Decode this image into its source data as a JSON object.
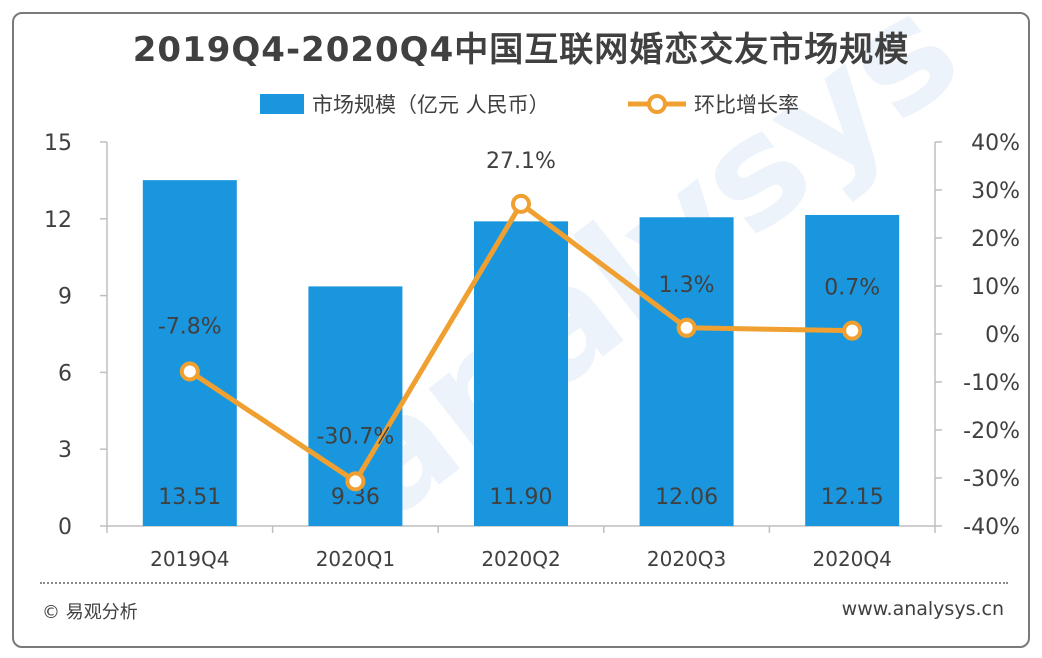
{
  "title": "2019Q4-2020Q4中国互联网婚恋交友市场规模",
  "footer": {
    "left": "© 易观分析",
    "right": "www.analysys.cn"
  },
  "watermark": "analysys",
  "colors": {
    "bar": "#1a96de",
    "line": "#f0a030",
    "marker_fill": "#ffffff",
    "axis": "#404040"
  },
  "chart_data": {
    "type": "bar",
    "categories": [
      "2019Q4",
      "2020Q1",
      "2020Q2",
      "2020Q3",
      "2020Q4"
    ],
    "series": [
      {
        "name": "市场规模（亿元 人民币）",
        "type": "bar",
        "axis": "left",
        "values": [
          13.51,
          9.36,
          11.9,
          12.06,
          12.15
        ],
        "labels": [
          "13.51",
          "9.36",
          "11.90",
          "12.06",
          "12.15"
        ]
      },
      {
        "name": "环比增长率",
        "type": "line",
        "axis": "right",
        "values": [
          -7.8,
          -30.7,
          27.1,
          1.3,
          0.7
        ],
        "labels": [
          "-7.8%",
          "-30.7%",
          "27.1%",
          "1.3%",
          "0.7%"
        ]
      }
    ],
    "y_left": {
      "min": 0,
      "max": 15,
      "ticks": [
        "0",
        "3",
        "6",
        "9",
        "12",
        "15"
      ],
      "tick_values": [
        0,
        3,
        6,
        9,
        12,
        15
      ]
    },
    "y_right": {
      "min": -40,
      "max": 40,
      "ticks": [
        "-40%",
        "-30%",
        "-20%",
        "-10%",
        "0%",
        "10%",
        "20%",
        "30%",
        "40%"
      ],
      "tick_values": [
        -40,
        -30,
        -20,
        -10,
        0,
        10,
        20,
        30,
        40
      ]
    },
    "legend_position": "top-center",
    "grid": false
  }
}
